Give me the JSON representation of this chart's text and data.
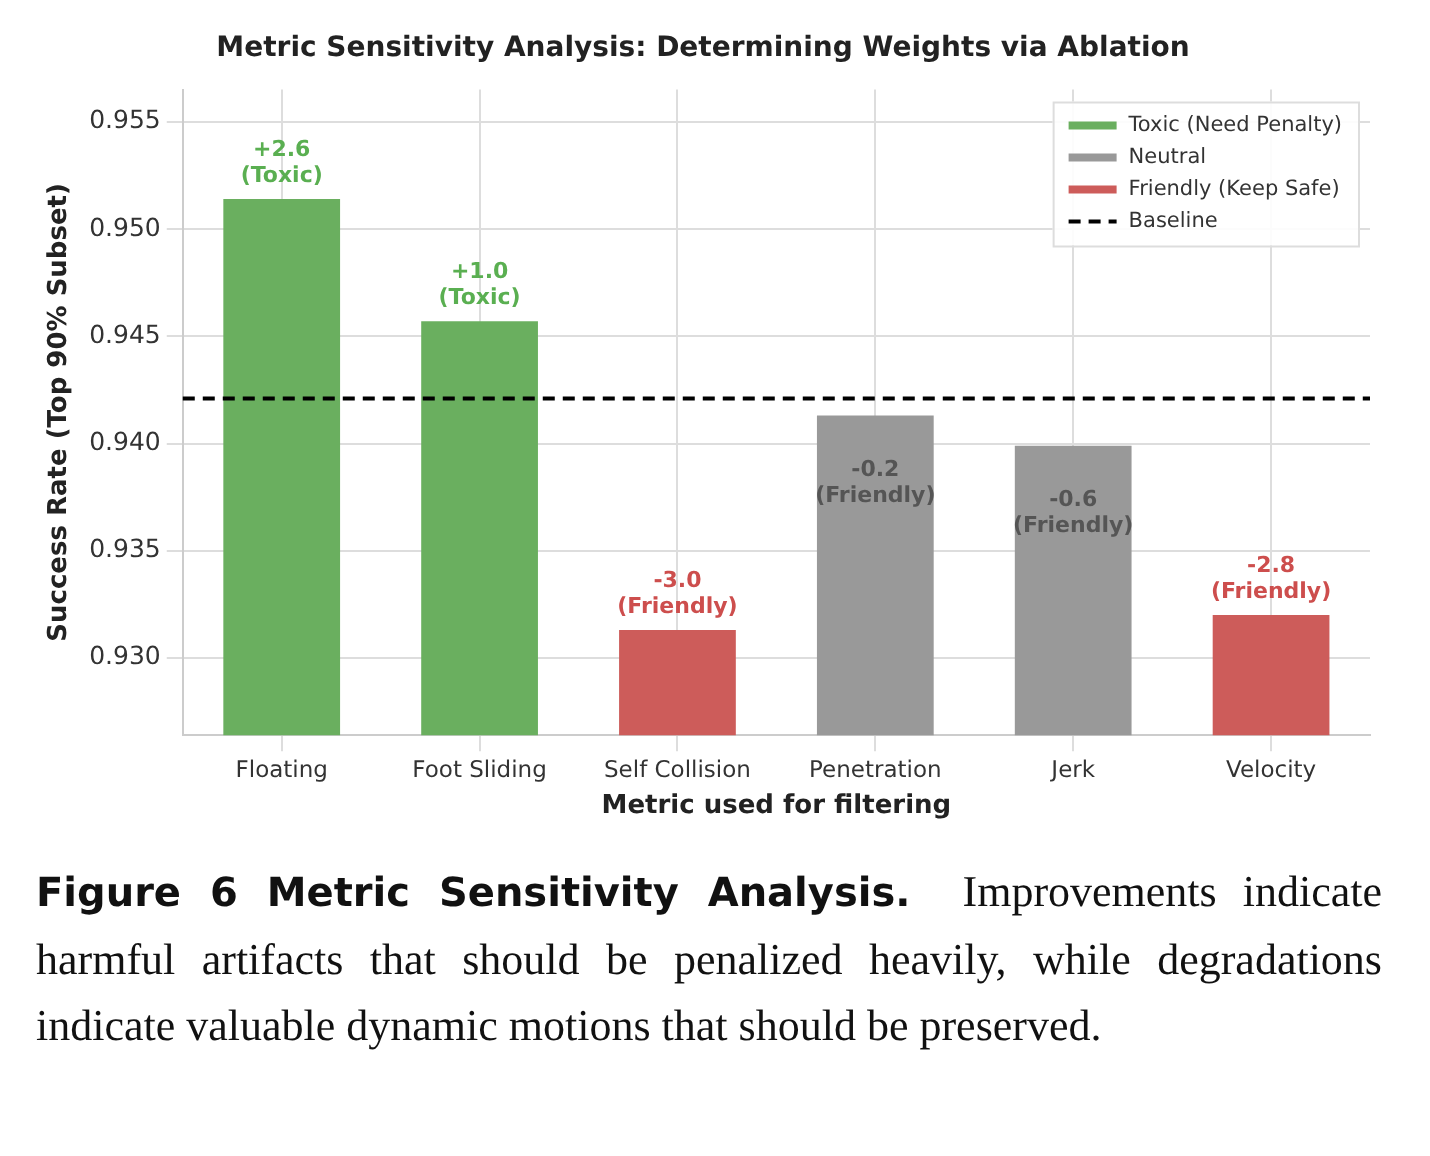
{
  "chart_data": {
    "type": "bar",
    "title": "Metric Sensitivity Analysis: Determining Weights via Ablation",
    "xlabel": "Metric used for filtering",
    "ylabel": "Success Rate (Top 90% Subset)",
    "categories": [
      "Floating",
      "Foot Sliding",
      "Self Collision",
      "Penetration",
      "Jerk",
      "Velocity"
    ],
    "series": [
      {
        "name": "Toxic (Need Penalty)",
        "color": "#6aaf5f",
        "values": [
          0.9514,
          0.9457,
          null,
          null,
          null,
          null
        ]
      },
      {
        "name": "Neutral",
        "color": "#999999",
        "values": [
          null,
          null,
          null,
          0.9413,
          0.9399,
          null
        ]
      },
      {
        "name": "Friendly (Keep Safe)",
        "color": "#cd5c5a",
        "values": [
          null,
          null,
          0.9313,
          null,
          null,
          0.932
        ]
      }
    ],
    "ylim": [
      0.9264,
      0.9565
    ],
    "yticks": [
      {
        "value": 0.93,
        "label": "0.930"
      },
      {
        "value": 0.935,
        "label": "0.935"
      },
      {
        "value": 0.94,
        "label": "0.940"
      },
      {
        "value": 0.945,
        "label": "0.945"
      },
      {
        "value": 0.95,
        "label": "0.950"
      },
      {
        "value": 0.955,
        "label": "0.955"
      }
    ],
    "ref_lines": [
      {
        "axis": "y",
        "value": 0.9421,
        "label": "Baseline",
        "color": "#000000",
        "line_style": "dashed"
      }
    ],
    "grid": true,
    "legend": "top right",
    "annotations": [
      {
        "text": "+2.6 (Toxic)",
        "x": "Floating",
        "y": 0.9514
      },
      {
        "text": "+1.0 (Toxic)",
        "x": "Foot Sliding",
        "y": 0.9457
      },
      {
        "text": "-3.0 (Friendly)",
        "x": "Self Collision",
        "y": 0.9313
      },
      {
        "text": "-0.2 (Friendly)",
        "x": "Penetration",
        "y": 0.9413
      },
      {
        "text": "-0.6 (Friendly)",
        "x": "Jerk",
        "y": 0.9399
      },
      {
        "text": "-2.8 (Friendly)",
        "x": "Velocity",
        "y": 0.932
      },
      "Figure 6 Metric Sensitivity Analysis. Improvements indicate harmful artifacts that should be penalized heavily, while degradations indicate valuable dynamic motions that should be preserved."
    ]
  }
}
